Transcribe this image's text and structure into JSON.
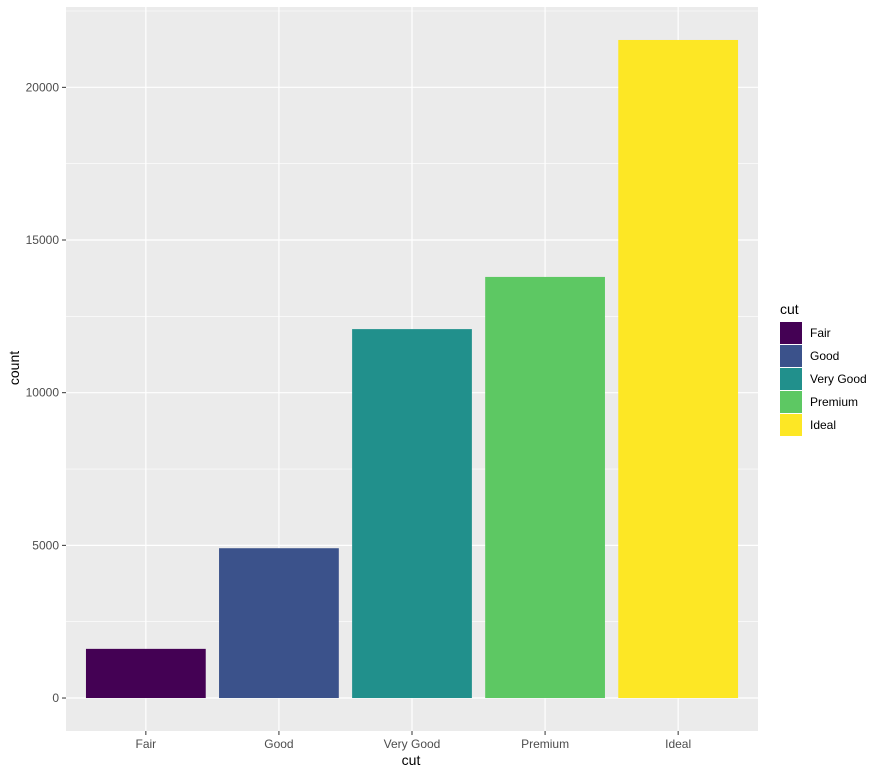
{
  "chart_data": {
    "type": "bar",
    "categories": [
      "Fair",
      "Good",
      "Very Good",
      "Premium",
      "Ideal"
    ],
    "values": [
      1610,
      4906,
      12082,
      13791,
      21551
    ],
    "colors": [
      "#440154",
      "#3B528B",
      "#21908C",
      "#5DC863",
      "#FDE725"
    ],
    "xlabel": "cut",
    "ylabel": "count",
    "ylim": [
      -1080,
      22631
    ],
    "yticks": [
      0,
      5000,
      10000,
      15000,
      20000
    ],
    "ytick_labels": [
      "0",
      "5000",
      "10000",
      "15000",
      "20000"
    ],
    "grid": true,
    "legend": {
      "title": "cut",
      "position": "right",
      "items": [
        "Fair",
        "Good",
        "Very Good",
        "Premium",
        "Ideal"
      ]
    }
  }
}
